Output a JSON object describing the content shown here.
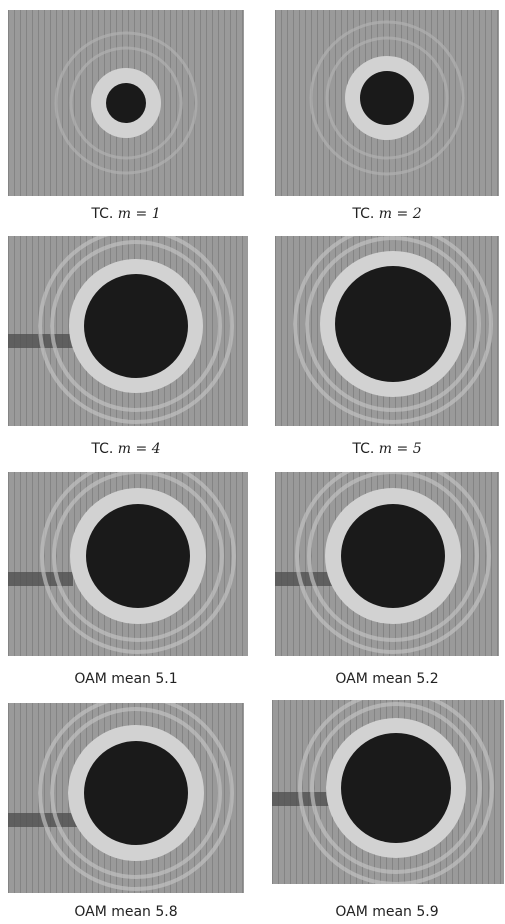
{
  "figure": {
    "colors": {
      "background": "#9a9a9a",
      "ring": "#d2d2d2",
      "core": "#1a1a1a",
      "texture": "#6d6d6d"
    },
    "panels": [
      {
        "caption_prefix": "TC. ",
        "caption_var": "m",
        "caption_eq": " = ",
        "caption_val": "1",
        "core_type": "small"
      },
      {
        "caption_prefix": "TC. ",
        "caption_var": "m",
        "caption_eq": " = ",
        "caption_val": "2",
        "core_type": "small"
      },
      {
        "caption_prefix": "TC. ",
        "caption_var": "m",
        "caption_eq": " = ",
        "caption_val": "4",
        "core_type": "large"
      },
      {
        "caption_prefix": "TC. ",
        "caption_var": "m",
        "caption_eq": " = ",
        "caption_val": "5",
        "core_type": "large"
      },
      {
        "caption_text": "OAM mean 5.1",
        "core_type": "large"
      },
      {
        "caption_text": "OAM mean 5.2",
        "core_type": "large"
      },
      {
        "caption_text": "OAM mean 5.8",
        "core_type": "large"
      },
      {
        "caption_text": "OAM mean 5.9",
        "core_type": "large"
      }
    ]
  }
}
